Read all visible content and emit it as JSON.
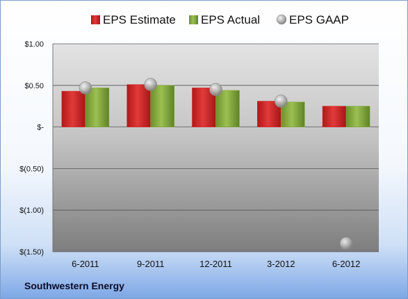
{
  "company_name": "Southwestern Energy",
  "colors": {
    "estimate": "#d42a2a",
    "actual": "#86ad3c",
    "gaap": "#a9a9a9"
  },
  "chart_data": {
    "type": "bar",
    "title": "",
    "xlabel": "",
    "ylabel": "",
    "categories": [
      "6-2011",
      "9-2011",
      "12-2011",
      "3-2012",
      "6-2012"
    ],
    "series": [
      {
        "name": "EPS Estimate",
        "kind": "bar",
        "values": [
          0.43,
          0.51,
          0.47,
          0.31,
          0.25
        ]
      },
      {
        "name": "EPS Actual",
        "kind": "bar",
        "values": [
          0.47,
          0.5,
          0.44,
          0.3,
          0.25
        ]
      },
      {
        "name": "EPS GAAP",
        "kind": "marker",
        "values": [
          0.47,
          0.51,
          0.45,
          0.31,
          -1.4
        ]
      }
    ],
    "ylim": [
      -1.5,
      1.0
    ],
    "yticks": [
      1.0,
      0.5,
      0.0,
      -0.5,
      -1.0,
      -1.5
    ],
    "ytick_labels": [
      "$1.00",
      "$0.50",
      "$-",
      "$(0.50)",
      "$(1.00)",
      "$(1.50)"
    ],
    "grid": true,
    "legend_position": "top"
  }
}
